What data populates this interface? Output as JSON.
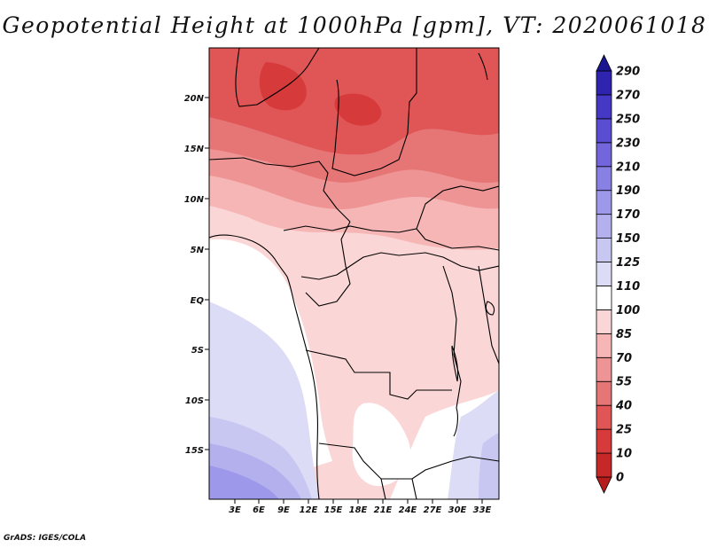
{
  "title": "Geopotential Height at 1000hPa [gpm], VT: 2020061018",
  "footer": "GrADS: IGES/COLA",
  "map": {
    "lat_labels": [
      "20N",
      "15N",
      "10N",
      "5N",
      "EQ",
      "5S",
      "10S",
      "15S"
    ],
    "lon_labels": [
      "3E",
      "6E",
      "9E",
      "12E",
      "15E",
      "18E",
      "21E",
      "24E",
      "27E",
      "30E",
      "33E"
    ]
  },
  "colorbar": {
    "levels": [
      "0",
      "10",
      "25",
      "40",
      "55",
      "70",
      "85",
      "100",
      "110",
      "125",
      "150",
      "170",
      "190",
      "210",
      "230",
      "250",
      "270",
      "290"
    ],
    "colors": [
      "#b71c1c",
      "#c62828",
      "#d63a3a",
      "#e05555",
      "#e67575",
      "#ee9494",
      "#f6b6b6",
      "#fbd6d6",
      "#ffffff",
      "#dcdcf7",
      "#c7c7f2",
      "#b4b0ee",
      "#9e98ea",
      "#8980e4",
      "#7366dc",
      "#5b4dd2",
      "#4438c4",
      "#2e24b0",
      "#1b168f"
    ]
  }
}
